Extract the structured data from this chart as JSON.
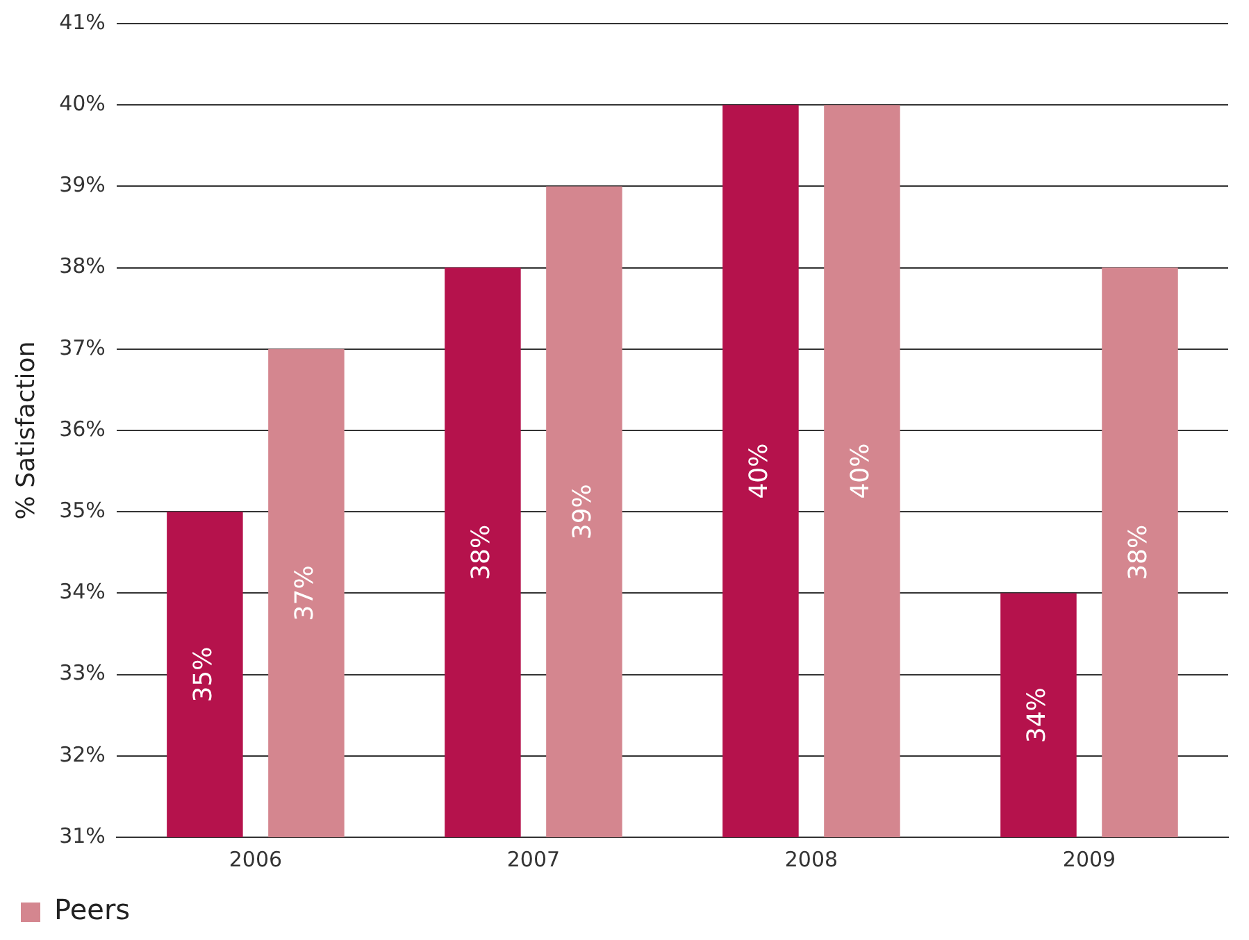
{
  "chart_data": {
    "type": "bar",
    "ylabel": "% Satisfaction",
    "categories": [
      "2006",
      "2007",
      "2008",
      "2009"
    ],
    "series": [
      {
        "color": "#b5124c",
        "values": [
          35,
          38,
          40,
          34
        ],
        "value_labels": [
          "35%",
          "38%",
          "40%",
          "34%"
        ]
      },
      {
        "name": "Peers",
        "color": "#d4868f",
        "values": [
          37,
          39,
          40,
          38
        ],
        "value_labels": [
          "37%",
          "39%",
          "40%",
          "38%"
        ]
      }
    ],
    "ylim": [
      31,
      41
    ],
    "yticks": [
      {
        "value": 31,
        "label": "31%"
      },
      {
        "value": 32,
        "label": "32%"
      },
      {
        "value": 33,
        "label": "33%"
      },
      {
        "value": 34,
        "label": "34%"
      },
      {
        "value": 35,
        "label": "35%"
      },
      {
        "value": 36,
        "label": "36%"
      },
      {
        "value": 37,
        "label": "37%"
      },
      {
        "value": 38,
        "label": "38%"
      },
      {
        "value": 39,
        "label": "39%"
      },
      {
        "value": 40,
        "label": "40%"
      },
      {
        "value": 41,
        "label": "41%"
      }
    ],
    "grid": "y",
    "legend": "bottom left"
  }
}
